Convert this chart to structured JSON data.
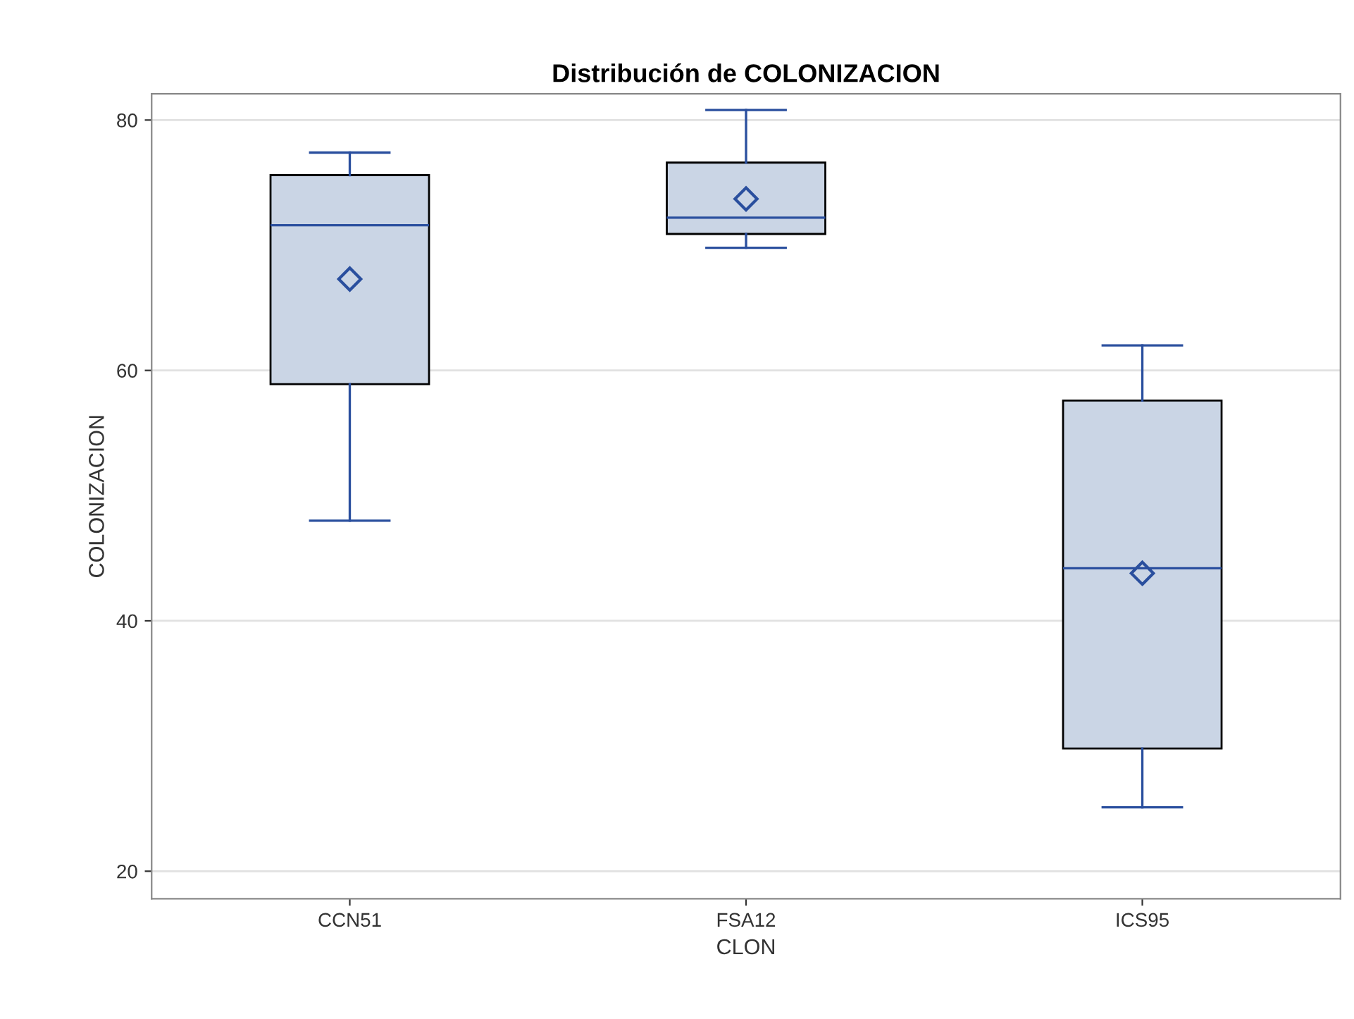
{
  "chart_data": {
    "type": "box",
    "title": "Distribución de COLONIZACION",
    "xlabel": "CLON",
    "ylabel": "COLONIZACION",
    "categories": [
      "CCN51",
      "FSA12",
      "ICS95"
    ],
    "boxes": [
      {
        "low": 48.0,
        "q1": 58.9,
        "median": 71.6,
        "q3": 75.6,
        "high": 77.4,
        "mean": 67.3
      },
      {
        "low": 69.8,
        "q1": 70.9,
        "median": 72.2,
        "q3": 76.6,
        "high": 80.8,
        "mean": 73.7
      },
      {
        "low": 25.1,
        "q1": 29.8,
        "median": 44.2,
        "q3": 57.6,
        "high": 62.0,
        "mean": 43.8
      }
    ],
    "color": "#cad5e5",
    "ylim": [
      17.8,
      82.1
    ],
    "yticks": [
      20,
      40,
      60,
      80
    ],
    "grid": "y",
    "legend": false
  }
}
